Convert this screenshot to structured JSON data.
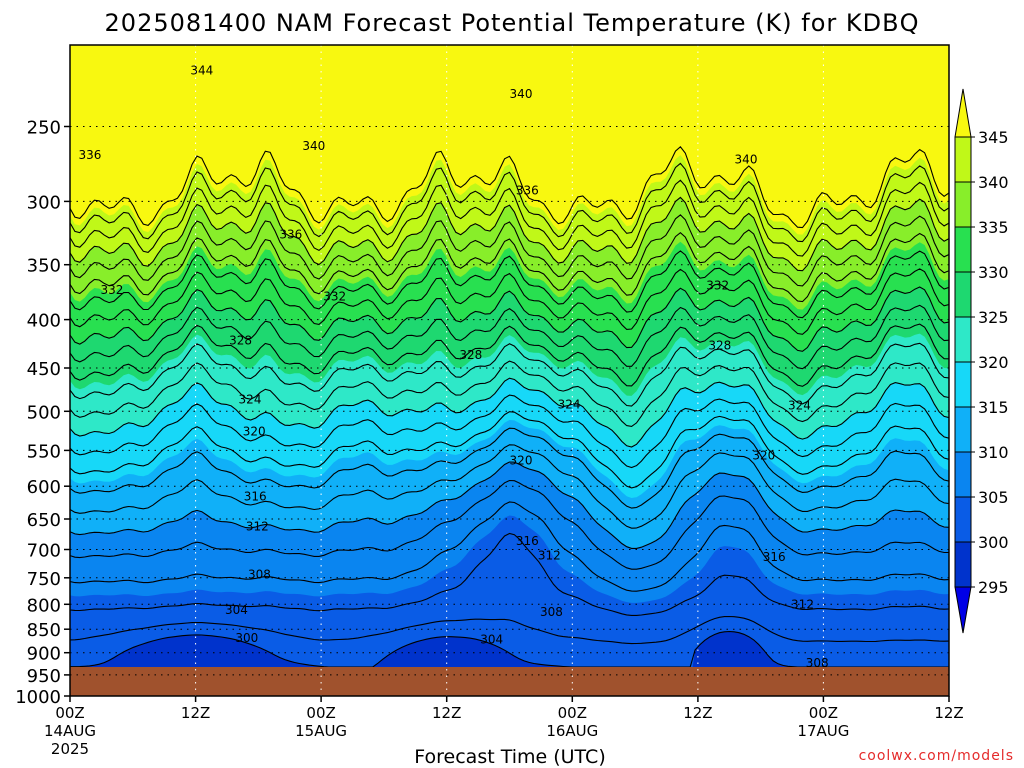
{
  "chart_data": {
    "type": "heatmap",
    "title": "2025081400 NAM Forecast Potential Temperature (K) for KDBQ",
    "xlabel": "Forecast Time (UTC)",
    "ylabel": "",
    "watermark": "coolwx.com/models",
    "y_axis": {
      "scale": "log",
      "ylim_top_hPa": 205,
      "ylim_bottom_hPa": 1000,
      "ticks": [
        250,
        300,
        350,
        400,
        450,
        500,
        550,
        600,
        650,
        700,
        750,
        800,
        850,
        900,
        950,
        1000
      ],
      "tick_labels": [
        "250",
        "300",
        "350",
        "400",
        "450",
        "500",
        "550",
        "600",
        "650",
        "700",
        "750",
        "800",
        "850",
        "900",
        "950",
        "1000"
      ]
    },
    "x_axis": {
      "xlim_hours": [
        0,
        84
      ],
      "ticks": [
        0,
        12,
        24,
        36,
        48,
        60,
        72,
        84
      ],
      "tick_labels": [
        [
          "00Z",
          "14AUG",
          "2025"
        ],
        [
          "12Z"
        ],
        [
          "00Z",
          "15AUG"
        ],
        [
          "12Z"
        ],
        [
          "00Z",
          "16AUG"
        ],
        [
          "12Z"
        ],
        [
          "00Z",
          "17AUG"
        ],
        [
          "12Z"
        ]
      ]
    },
    "grid": true,
    "colorbar": {
      "placement": "right",
      "levels": [
        295,
        300,
        305,
        310,
        315,
        320,
        325,
        330,
        335,
        340,
        345
      ],
      "labels": [
        "295",
        "300",
        "305",
        "310",
        "315",
        "320",
        "325",
        "330",
        "335",
        "340",
        "345"
      ],
      "colors": [
        "#0000e6",
        "#0033cc",
        "#0a5ce6",
        "#0a85f0",
        "#10b0f8",
        "#17d8f8",
        "#2ee8c8",
        "#1ed870",
        "#28e050",
        "#88ee2a",
        "#c0f818",
        "#f8f810"
      ],
      "extend": "both"
    },
    "contour_labels": [
      {
        "t": 12.6,
        "p": 218,
        "v": "344"
      },
      {
        "t": 43.1,
        "p": 231,
        "v": "340"
      },
      {
        "t": 23.3,
        "p": 262,
        "v": "340"
      },
      {
        "t": 64.6,
        "p": 271,
        "v": "340"
      },
      {
        "t": 1.9,
        "p": 268,
        "v": "336"
      },
      {
        "t": 43.7,
        "p": 292,
        "v": "336"
      },
      {
        "t": 21.1,
        "p": 325,
        "v": "336"
      },
      {
        "t": 4.0,
        "p": 372,
        "v": "332"
      },
      {
        "t": 25.3,
        "p": 378,
        "v": "332"
      },
      {
        "t": 61.9,
        "p": 368,
        "v": "332"
      },
      {
        "t": 16.3,
        "p": 421,
        "v": "328"
      },
      {
        "t": 38.3,
        "p": 436,
        "v": "328"
      },
      {
        "t": 62.1,
        "p": 426,
        "v": "328"
      },
      {
        "t": 17.2,
        "p": 486,
        "v": "324"
      },
      {
        "t": 47.7,
        "p": 492,
        "v": "324"
      },
      {
        "t": 69.7,
        "p": 493,
        "v": "324"
      },
      {
        "t": 17.6,
        "p": 525,
        "v": "320"
      },
      {
        "t": 43.1,
        "p": 564,
        "v": "320"
      },
      {
        "t": 66.3,
        "p": 557,
        "v": "320"
      },
      {
        "t": 17.7,
        "p": 615,
        "v": "316"
      },
      {
        "t": 43.7,
        "p": 686,
        "v": "316"
      },
      {
        "t": 67.3,
        "p": 713,
        "v": "316"
      },
      {
        "t": 17.9,
        "p": 662,
        "v": "312"
      },
      {
        "t": 45.8,
        "p": 710,
        "v": "312"
      },
      {
        "t": 70.0,
        "p": 800,
        "v": "312"
      },
      {
        "t": 18.1,
        "p": 744,
        "v": "308"
      },
      {
        "t": 46.0,
        "p": 815,
        "v": "308"
      },
      {
        "t": 71.4,
        "p": 962,
        "v": "308"
      },
      {
        "t": 15.9,
        "p": 811,
        "v": "304"
      },
      {
        "t": 40.3,
        "p": 871,
        "v": "304"
      },
      {
        "t": 16.9,
        "p": 868,
        "v": "300"
      }
    ],
    "regions": [
      {
        "name": "warm-cap",
        "value_range": ">345",
        "t_range": [
          0,
          84
        ],
        "p_range": [
          205,
          210
        ]
      },
      {
        "name": "low-level-cold-pool-1",
        "value_range": "295-300",
        "t_range": [
          5.5,
          19
        ],
        "p_range": [
          865,
          985
        ]
      },
      {
        "name": "low-level-cold-pool-2",
        "value_range": "295-300",
        "t_range": [
          31,
          40
        ],
        "p_range": [
          950,
          985
        ]
      },
      {
        "name": "morning-spike",
        "value_range": "<305",
        "t_range": [
          59,
          67
        ],
        "p_range": [
          870,
          985
        ]
      }
    ]
  }
}
